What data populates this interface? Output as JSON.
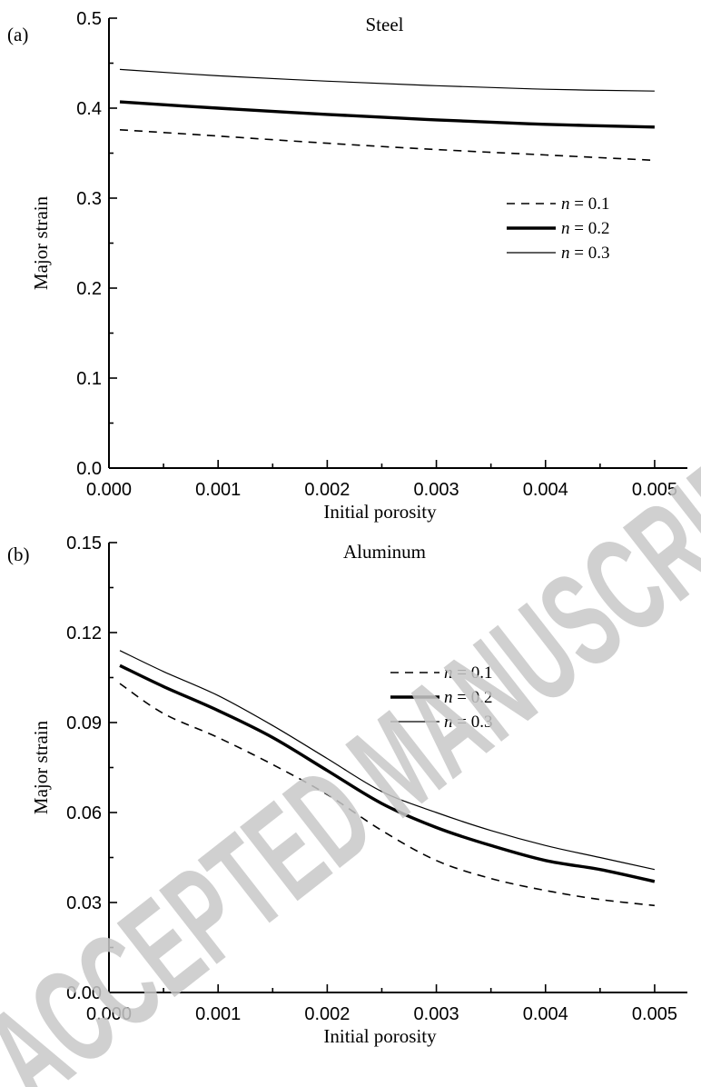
{
  "watermark": "ACCEPTED MANUSCRIPT",
  "chart_data": [
    {
      "type": "line",
      "panel_label": "(a)",
      "title": "Steel",
      "xlabel": "Initial porosity",
      "ylabel": "Major strain",
      "xlim": [
        0.0,
        0.0053
      ],
      "ylim": [
        0.0,
        0.5
      ],
      "xticks": [
        "0.000",
        "0.001",
        "0.002",
        "0.003",
        "0.004",
        "0.005"
      ],
      "xtick_values": [
        0.0,
        0.001,
        0.002,
        0.003,
        0.004,
        0.005
      ],
      "yticks": [
        "0.0",
        "0.1",
        "0.2",
        "0.3",
        "0.4",
        "0.5"
      ],
      "ytick_values": [
        0.0,
        0.1,
        0.2,
        0.3,
        0.4,
        0.5
      ],
      "legend_placement": "right",
      "series": [
        {
          "name_prefix": "n",
          "name_suffix": " = 0.1",
          "style": "dashed",
          "x": [
            0.0001,
            0.001,
            0.002,
            0.003,
            0.004,
            0.005
          ],
          "y": [
            0.376,
            0.369,
            0.361,
            0.354,
            0.348,
            0.342
          ]
        },
        {
          "name_prefix": "n",
          "name_suffix": " = 0.2",
          "style": "thick",
          "x": [
            0.0001,
            0.001,
            0.002,
            0.003,
            0.004,
            0.005
          ],
          "y": [
            0.407,
            0.4,
            0.393,
            0.387,
            0.382,
            0.379
          ]
        },
        {
          "name_prefix": "n",
          "name_suffix": " = 0.3",
          "style": "thin",
          "x": [
            0.0001,
            0.001,
            0.002,
            0.003,
            0.004,
            0.005
          ],
          "y": [
            0.443,
            0.436,
            0.43,
            0.425,
            0.421,
            0.419
          ]
        }
      ]
    },
    {
      "type": "line",
      "panel_label": "(b)",
      "title": "Aluminum",
      "xlabel": "Initial porosity",
      "ylabel": "Major strain",
      "xlim": [
        0.0,
        0.0053
      ],
      "ylim": [
        0.0,
        0.15
      ],
      "xticks": [
        "0.000",
        "0.001",
        "0.002",
        "0.003",
        "0.004",
        "0.005"
      ],
      "xtick_values": [
        0.0,
        0.001,
        0.002,
        0.003,
        0.004,
        0.005
      ],
      "yticks": [
        "0.00",
        "0.03",
        "0.06",
        "0.09",
        "0.12",
        "0.15"
      ],
      "ytick_values": [
        0.0,
        0.03,
        0.06,
        0.09,
        0.12,
        0.15
      ],
      "legend_placement": "upper-right",
      "series": [
        {
          "name_prefix": "n",
          "name_suffix": " = 0.1",
          "style": "dashed",
          "x": [
            0.0001,
            0.0005,
            0.001,
            0.0015,
            0.002,
            0.0025,
            0.003,
            0.0035,
            0.004,
            0.0045,
            0.005
          ],
          "y": [
            0.103,
            0.093,
            0.085,
            0.076,
            0.066,
            0.054,
            0.044,
            0.038,
            0.034,
            0.031,
            0.029
          ]
        },
        {
          "name_prefix": "n",
          "name_suffix": " = 0.2",
          "style": "thick",
          "x": [
            0.0001,
            0.0005,
            0.001,
            0.0015,
            0.002,
            0.0025,
            0.003,
            0.0035,
            0.004,
            0.0045,
            0.005
          ],
          "y": [
            0.109,
            0.102,
            0.094,
            0.085,
            0.074,
            0.063,
            0.055,
            0.049,
            0.044,
            0.041,
            0.037
          ]
        },
        {
          "name_prefix": "n",
          "name_suffix": " = 0.3",
          "style": "thin",
          "x": [
            0.0001,
            0.0005,
            0.001,
            0.0015,
            0.002,
            0.0025,
            0.003,
            0.0035,
            0.004,
            0.0045,
            0.005
          ],
          "y": [
            0.114,
            0.107,
            0.099,
            0.089,
            0.078,
            0.067,
            0.06,
            0.054,
            0.049,
            0.045,
            0.041
          ]
        }
      ]
    }
  ]
}
